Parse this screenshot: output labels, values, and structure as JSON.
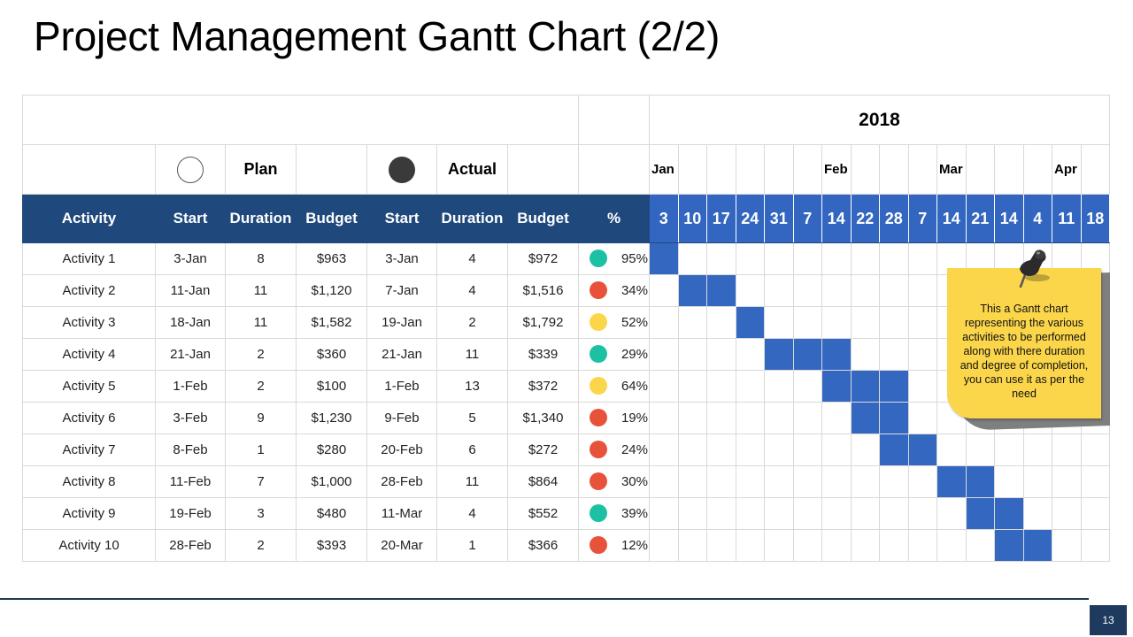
{
  "title": "Project Management Gantt Chart (2/2)",
  "page_number": "13",
  "note": {
    "text": "This a Gantt chart representing the various activities to be performed along with there duration and degree of completion, you can use it as per the need",
    "icon": "pushpin-icon"
  },
  "colors": {
    "header_bg": "#1f497d",
    "timeline_header_bg": "#3366c0",
    "bar": "#3468c0",
    "status_green": "#1cc1a4",
    "status_red": "#e8523a",
    "status_yellow": "#fbd64b",
    "note_bg": "#fbd64b"
  },
  "chart_data": {
    "type": "table",
    "year": "2018",
    "legend": {
      "plan": "Plan",
      "actual": "Actual"
    },
    "headers": [
      "Activity",
      "Start",
      "Duration",
      "Budget",
      "Start",
      "Duration",
      "Budget",
      "%"
    ],
    "months": [
      {
        "label": "Jan",
        "week_index": 0
      },
      {
        "label": "Feb",
        "week_index": 6
      },
      {
        "label": "Mar",
        "week_index": 10
      },
      {
        "label": "Apr",
        "week_index": 14
      }
    ],
    "weeks": [
      "3",
      "10",
      "17",
      "24",
      "31",
      "7",
      "14",
      "22",
      "28",
      "7",
      "14",
      "21",
      "14",
      "4",
      "11",
      "18"
    ],
    "rows": [
      {
        "activity": "Activity 1",
        "plan_start": "3-Jan",
        "plan_duration": "8",
        "plan_budget": "$963",
        "actual_start": "3-Jan",
        "actual_duration": "4",
        "actual_budget": "$972",
        "percent": "95%",
        "status": "green",
        "bar_weeks": [
          0
        ]
      },
      {
        "activity": "Activity 2",
        "plan_start": "11-Jan",
        "plan_duration": "11",
        "plan_budget": "$1,120",
        "actual_start": "7-Jan",
        "actual_duration": "4",
        "actual_budget": "$1,516",
        "percent": "34%",
        "status": "red",
        "bar_weeks": [
          1,
          2
        ]
      },
      {
        "activity": "Activity 3",
        "plan_start": "18-Jan",
        "plan_duration": "11",
        "plan_budget": "$1,582",
        "actual_start": "19-Jan",
        "actual_duration": "2",
        "actual_budget": "$1,792",
        "percent": "52%",
        "status": "yellow",
        "bar_weeks": [
          3
        ]
      },
      {
        "activity": "Activity 4",
        "plan_start": "21-Jan",
        "plan_duration": "2",
        "plan_budget": "$360",
        "actual_start": "21-Jan",
        "actual_duration": "11",
        "actual_budget": "$339",
        "percent": "29%",
        "status": "green",
        "bar_weeks": [
          4,
          5,
          6
        ]
      },
      {
        "activity": "Activity 5",
        "plan_start": "1-Feb",
        "plan_duration": "2",
        "plan_budget": "$100",
        "actual_start": "1-Feb",
        "actual_duration": "13",
        "actual_budget": "$372",
        "percent": "64%",
        "status": "yellow",
        "bar_weeks": [
          6,
          7,
          8
        ]
      },
      {
        "activity": "Activity 6",
        "plan_start": "3-Feb",
        "plan_duration": "9",
        "plan_budget": "$1,230",
        "actual_start": "9-Feb",
        "actual_duration": "5",
        "actual_budget": "$1,340",
        "percent": "19%",
        "status": "red",
        "bar_weeks": [
          7,
          8
        ]
      },
      {
        "activity": "Activity 7",
        "plan_start": "8-Feb",
        "plan_duration": "1",
        "plan_budget": "$280",
        "actual_start": "20-Feb",
        "actual_duration": "6",
        "actual_budget": "$272",
        "percent": "24%",
        "status": "red",
        "bar_weeks": [
          8,
          9
        ]
      },
      {
        "activity": "Activity 8",
        "plan_start": "11-Feb",
        "plan_duration": "7",
        "plan_budget": "$1,000",
        "actual_start": "28-Feb",
        "actual_duration": "11",
        "actual_budget": "$864",
        "percent": "30%",
        "status": "red",
        "bar_weeks": [
          10,
          11
        ]
      },
      {
        "activity": "Activity 9",
        "plan_start": "19-Feb",
        "plan_duration": "3",
        "plan_budget": "$480",
        "actual_start": "11-Mar",
        "actual_duration": "4",
        "actual_budget": "$552",
        "percent": "39%",
        "status": "green",
        "bar_weeks": [
          11,
          12
        ]
      },
      {
        "activity": "Activity 10",
        "plan_start": "28-Feb",
        "plan_duration": "2",
        "plan_budget": "$393",
        "actual_start": "20-Mar",
        "actual_duration": "1",
        "actual_budget": "$366",
        "percent": "12%",
        "status": "red",
        "bar_weeks": [
          12,
          13
        ]
      }
    ]
  }
}
